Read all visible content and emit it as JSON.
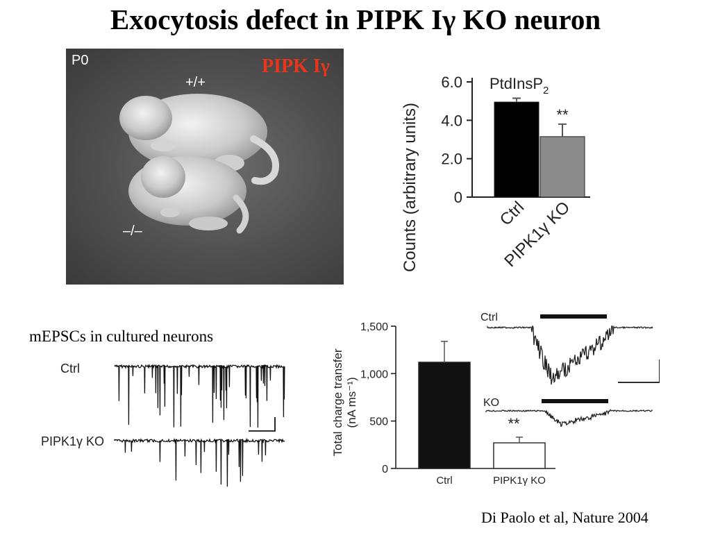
{
  "title": "Exocytosis defect in PIPK Iγ KO neuron",
  "photo": {
    "age_label": "P0",
    "wt_label": "+/+",
    "ko_label": "–/–"
  },
  "overlay_label": "PIPK Iγ",
  "mepsc_panel": {
    "caption": "mEPSCs in cultured neurons",
    "trace_labels": [
      "Ctrl",
      "PIPK1γ KO"
    ]
  },
  "charge_traces": {
    "labels": [
      "Ctrl",
      "KO"
    ]
  },
  "citation": "Di Paolo et al, Nature 2004",
  "colors": {
    "accent_red": "#e8351b",
    "ko_bar_gray": "#8c8c8c",
    "ctrl_bar": "#000000"
  },
  "chart_data": [
    {
      "type": "bar",
      "title": "PtdInsP",
      "title_subscript": "2",
      "ylabel": "Counts (arbitrary units)",
      "categories": [
        "Ctrl",
        "PIPK1γ KO"
      ],
      "values": [
        4.95,
        3.15
      ],
      "errors": [
        0.2,
        0.65
      ],
      "ylim": [
        0,
        6.0
      ],
      "yticks": [
        0,
        2.0,
        4.0,
        6.0
      ],
      "ytick_labels": [
        "0",
        "2.0",
        "4.0",
        "6.0"
      ],
      "significance": [
        "",
        "**"
      ],
      "grid": false
    },
    {
      "type": "bar",
      "ylabel_line1": "Total charge transfer",
      "ylabel_line2": "(nA ms⁻¹)",
      "categories": [
        "Ctrl",
        "PIPK1γ KO"
      ],
      "values": [
        1120,
        270
      ],
      "errors": [
        220,
        60
      ],
      "ylim": [
        0,
        1500
      ],
      "yticks": [
        0,
        500,
        1000,
        1500
      ],
      "ytick_labels": [
        "0",
        "500",
        "1,000",
        "1,500"
      ],
      "significance": [
        "",
        "**"
      ],
      "grid": false
    }
  ]
}
